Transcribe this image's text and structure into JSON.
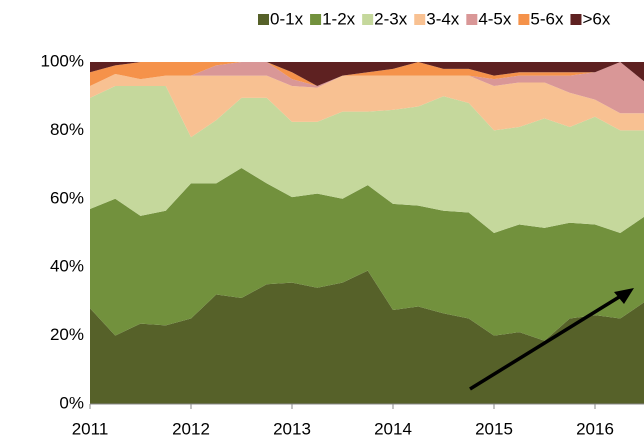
{
  "chart_data": {
    "type": "stacked_area",
    "x": [
      2011,
      2011.25,
      2011.5,
      2011.75,
      2012,
      2012.25,
      2012.5,
      2012.75,
      2013,
      2013.25,
      2013.5,
      2013.75,
      2014,
      2014.25,
      2014.5,
      2014.75,
      2015,
      2015.25,
      2015.5,
      2015.75,
      2016,
      2016.25,
      2016.5
    ],
    "series": [
      {
        "name": "0-1x",
        "color": "#566129",
        "values": [
          28,
          20,
          23.5,
          23,
          25,
          32,
          31,
          35,
          35.5,
          34,
          35.5,
          39,
          27.5,
          28.5,
          26.5,
          25,
          20,
          21,
          18.5,
          25,
          26,
          25,
          30
        ]
      },
      {
        "name": "1-2x",
        "color": "#72913d",
        "values": [
          29,
          40,
          31.5,
          33.5,
          39.5,
          32.5,
          38,
          29.5,
          25,
          27.5,
          24.5,
          25,
          31,
          29.5,
          30,
          31,
          30,
          31.5,
          33,
          28,
          26.5,
          25,
          25
        ]
      },
      {
        "name": "2-3x",
        "color": "#c5d89c",
        "values": [
          32.5,
          33,
          38,
          36.5,
          13.5,
          18.5,
          20.5,
          25,
          22,
          21,
          25.5,
          21.5,
          27.5,
          29,
          33.5,
          32,
          30,
          28.5,
          32,
          28,
          31.5,
          30,
          25
        ]
      },
      {
        "name": "3-4x",
        "color": "#f8c192",
        "values": [
          3.5,
          3.5,
          2,
          3,
          18,
          13,
          6.5,
          6.5,
          10.5,
          10,
          10.5,
          10.5,
          10,
          9,
          6,
          8,
          13,
          13,
          10.5,
          10,
          5,
          5,
          5
        ]
      },
      {
        "name": "4-5x",
        "color": "#d99797",
        "values": [
          0,
          0,
          0,
          0,
          0,
          3,
          4,
          4,
          2,
          0.5,
          0,
          0,
          0,
          0,
          0,
          0,
          2,
          2,
          2,
          5,
          8,
          15,
          9
        ]
      },
      {
        "name": "5-6x",
        "color": "#f5924a",
        "values": [
          4,
          2.5,
          5,
          4,
          4,
          1,
          0,
          0,
          2,
          0,
          0,
          1,
          2,
          4,
          2,
          2,
          1,
          1,
          1,
          1,
          0,
          0,
          0
        ]
      },
      {
        "name": ">6x",
        "color": "#5e2121",
        "values": [
          3,
          1,
          0,
          0,
          0,
          0,
          0,
          0,
          3,
          7,
          4,
          3,
          2,
          0,
          2,
          2,
          4,
          3,
          3,
          3,
          3,
          0,
          6
        ]
      }
    ],
    "xlim": [
      2011,
      2016.5
    ],
    "xticks": [
      2011,
      2012,
      2013,
      2014,
      2015,
      2016
    ],
    "ylim": [
      0,
      100
    ],
    "yticks": [
      {
        "value": 0,
        "label": "0%"
      },
      {
        "value": 20,
        "label": "20%"
      },
      {
        "value": 40,
        "label": "40%"
      },
      {
        "value": 60,
        "label": "60%"
      },
      {
        "value": 80,
        "label": "80%"
      },
      {
        "value": 100,
        "label": "100%"
      }
    ],
    "legend": "top"
  }
}
